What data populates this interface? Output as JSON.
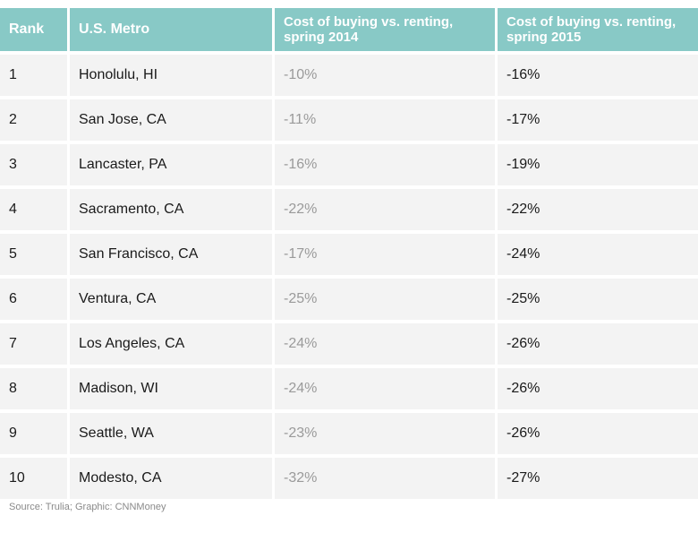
{
  "table": {
    "headers": [
      "Rank",
      "U.S. Metro",
      "Cost of buying vs. renting, spring 2014",
      "Cost of buying vs. renting, spring 2015"
    ],
    "rows": [
      [
        "1",
        "Honolulu, HI",
        "-10%",
        "-16%"
      ],
      [
        "2",
        "San Jose, CA",
        "-11%",
        "-17%"
      ],
      [
        "3",
        "Lancaster, PA",
        "-16%",
        "-19%"
      ],
      [
        "4",
        "Sacramento, CA",
        "-22%",
        "-22%"
      ],
      [
        "5",
        "San Francisco, CA",
        "-17%",
        "-24%"
      ],
      [
        "6",
        "Ventura, CA",
        "-25%",
        "-25%"
      ],
      [
        "7",
        "Los Angeles, CA",
        "-24%",
        "-26%"
      ],
      [
        "8",
        "Madison, WI",
        "-24%",
        "-26%"
      ],
      [
        "9",
        "Seattle, WA",
        "-23%",
        "-26%"
      ],
      [
        "10",
        "Modesto, CA",
        "-32%",
        "-27%"
      ]
    ]
  },
  "source": "Source: Trulia; Graphic: CNNMoney",
  "colors": {
    "header_bg": "#88c9c6",
    "row_bg": "#f3f3f3",
    "muted_text": "#9a9a9a"
  }
}
